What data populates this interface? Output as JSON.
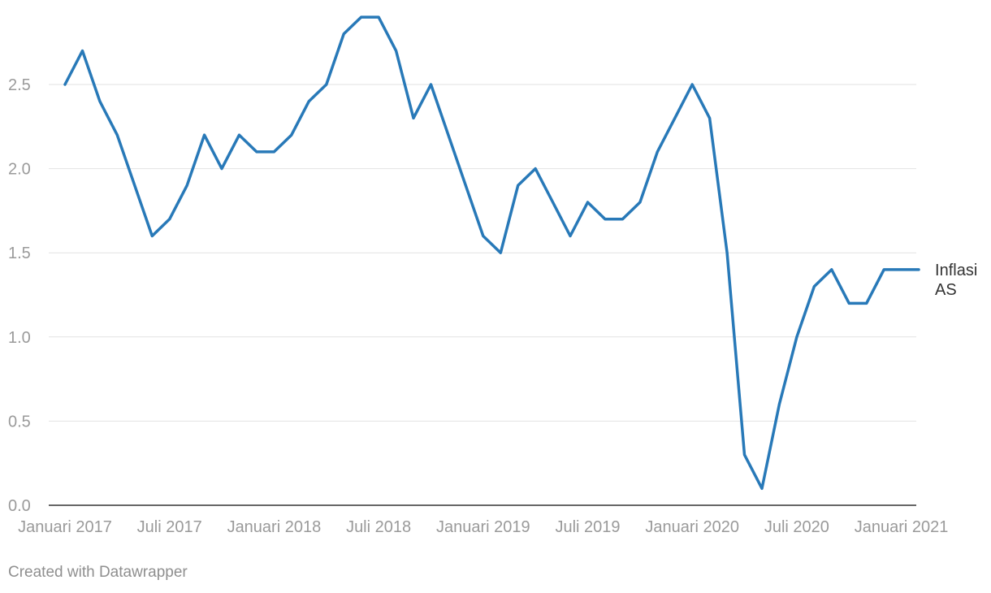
{
  "chart_data": {
    "type": "line",
    "title": "",
    "xlabel": "",
    "ylabel": "",
    "ylim": [
      0,
      2.9
    ],
    "y_ticks": [
      "0.0",
      "0.5",
      "1.0",
      "1.5",
      "2.0",
      "2.5"
    ],
    "y_tick_values": [
      0,
      0.5,
      1.0,
      1.5,
      2.0,
      2.5
    ],
    "x_tick_labels": [
      "Januari 2017",
      "Juli 2017",
      "Januari 2018",
      "Juli 2018",
      "Januari 2019",
      "Juli 2019",
      "Januari 2020",
      "Juli 2020",
      "Januari 2021"
    ],
    "x_tick_dates": [
      "2017-01",
      "2017-07",
      "2018-01",
      "2018-07",
      "2019-01",
      "2019-07",
      "2020-01",
      "2020-07",
      "2021-01"
    ],
    "grid": true,
    "series": [
      {
        "name": "Inflasi AS",
        "label_lines": [
          "Inflasi",
          "AS"
        ],
        "color": "#2879b8",
        "x": [
          "2017-01",
          "2017-02",
          "2017-03",
          "2017-04",
          "2017-05",
          "2017-06",
          "2017-07",
          "2017-08",
          "2017-09",
          "2017-10",
          "2017-11",
          "2017-12",
          "2018-01",
          "2018-02",
          "2018-03",
          "2018-04",
          "2018-05",
          "2018-06",
          "2018-07",
          "2018-08",
          "2018-09",
          "2018-10",
          "2018-11",
          "2018-12",
          "2019-01",
          "2019-02",
          "2019-03",
          "2019-04",
          "2019-05",
          "2019-06",
          "2019-07",
          "2019-08",
          "2019-09",
          "2019-10",
          "2019-11",
          "2019-12",
          "2020-01",
          "2020-02",
          "2020-03",
          "2020-04",
          "2020-05",
          "2020-06",
          "2020-07",
          "2020-08",
          "2020-09",
          "2020-10",
          "2020-11",
          "2020-12",
          "2021-01",
          "2021-02"
        ],
        "values": [
          2.5,
          2.7,
          2.4,
          2.2,
          1.9,
          1.6,
          1.7,
          1.9,
          2.2,
          2.0,
          2.2,
          2.1,
          2.1,
          2.2,
          2.4,
          2.5,
          2.8,
          2.9,
          2.9,
          2.7,
          2.3,
          2.5,
          2.2,
          1.9,
          1.6,
          1.5,
          1.9,
          2.0,
          1.8,
          1.6,
          1.8,
          1.7,
          1.7,
          1.8,
          2.1,
          2.3,
          2.5,
          2.3,
          1.5,
          0.3,
          0.1,
          0.6,
          1.0,
          1.3,
          1.4,
          1.2,
          1.2,
          1.4,
          1.4,
          1.4
        ]
      }
    ]
  },
  "footer": {
    "credit": "Created with Datawrapper"
  }
}
